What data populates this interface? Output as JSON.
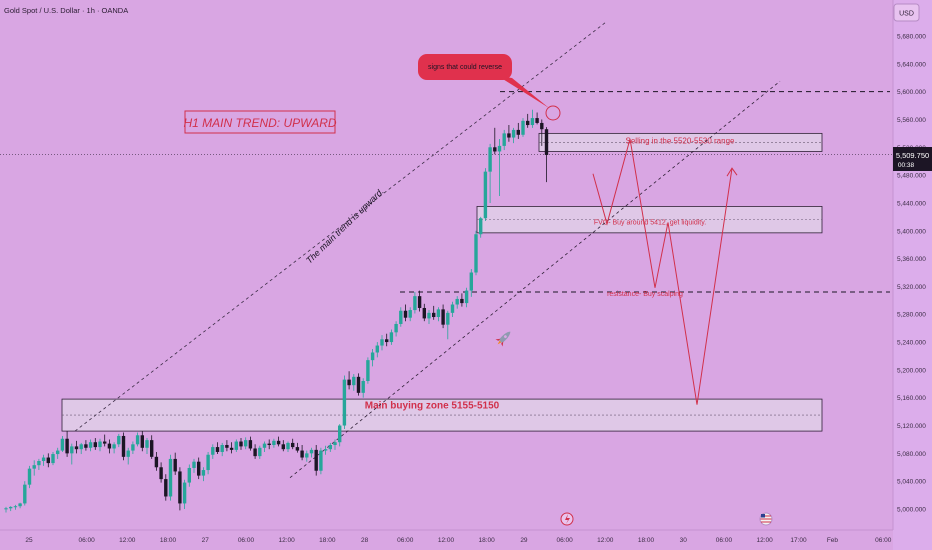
{
  "header": {
    "symbol_title": "Gold Spot / U.S. Dollar · 1h · OANDA",
    "currency": "USD"
  },
  "chart_data": {
    "type": "candlestick",
    "title": "Gold Spot / U.S. Dollar · 1h · OANDA",
    "ylim": [
      4985,
      5715
    ],
    "y_ticks": [
      5000,
      5040,
      5080,
      5120,
      5160,
      5200,
      5240,
      5280,
      5320,
      5360,
      5400,
      5440,
      5480,
      5520,
      5560,
      5600,
      5640,
      5680
    ],
    "y_tick_labels": [
      "5,000.000",
      "5,040.000",
      "5,080.000",
      "5,120.000",
      "5,160.000",
      "5,200.000",
      "5,240.000",
      "5,280.000",
      "5,320.000",
      "5,360.000",
      "5,400.000",
      "5,440.000",
      "5,480.000",
      "5,520.000",
      "5,560.000",
      "5,600.000",
      "5,640.000",
      "5,680.000"
    ],
    "x_ticks": [
      {
        "label": "25",
        "h": 0
      },
      {
        "label": "06:00",
        "h": 17
      },
      {
        "label": "12:00",
        "h": 29
      },
      {
        "label": "18:00",
        "h": 41
      },
      {
        "label": "27",
        "h": 52
      },
      {
        "label": "06:00",
        "h": 64
      },
      {
        "label": "12:00",
        "h": 76
      },
      {
        "label": "18:00",
        "h": 88
      },
      {
        "label": "28",
        "h": 99
      },
      {
        "label": "06:00",
        "h": 111
      },
      {
        "label": "12:00",
        "h": 123
      },
      {
        "label": "18:00",
        "h": 135
      },
      {
        "label": "29",
        "h": 146
      },
      {
        "label": "06:00",
        "h": 158
      },
      {
        "label": "12:00",
        "h": 170
      },
      {
        "label": "18:00",
        "h": 182
      },
      {
        "label": "30",
        "h": 193
      },
      {
        "label": "06:00",
        "h": 205
      },
      {
        "label": "12:00",
        "h": 217
      },
      {
        "label": "17:00",
        "h": 227
      },
      {
        "label": "Feb",
        "h": 237
      },
      {
        "label": "06:00",
        "h": 252
      }
    ],
    "candles": [
      [
        5000,
        5003,
        4995,
        5001
      ],
      [
        5001,
        5004,
        4997,
        5003
      ],
      [
        5003,
        5006,
        4999,
        5004
      ],
      [
        5004,
        5009,
        5001,
        5008
      ],
      [
        5008,
        5040,
        5005,
        5035
      ],
      [
        5035,
        5062,
        5030,
        5058
      ],
      [
        5058,
        5070,
        5048,
        5063
      ],
      [
        5063,
        5072,
        5056,
        5069
      ],
      [
        5069,
        5078,
        5062,
        5074
      ],
      [
        5074,
        5080,
        5060,
        5066
      ],
      [
        5066,
        5082,
        5063,
        5079
      ],
      [
        5079,
        5088,
        5072,
        5084
      ],
      [
        5084,
        5105,
        5082,
        5101
      ],
      [
        5101,
        5112,
        5075,
        5080
      ],
      [
        5080,
        5094,
        5064,
        5090
      ],
      [
        5090,
        5098,
        5080,
        5086
      ],
      [
        5086,
        5095,
        5079,
        5093
      ],
      [
        5093,
        5099,
        5084,
        5088
      ],
      [
        5088,
        5100,
        5083,
        5096
      ],
      [
        5096,
        5102,
        5085,
        5089
      ],
      [
        5089,
        5101,
        5083,
        5097
      ],
      [
        5097,
        5107,
        5090,
        5094
      ],
      [
        5094,
        5100,
        5080,
        5087
      ],
      [
        5087,
        5096,
        5080,
        5093
      ],
      [
        5093,
        5108,
        5089,
        5105
      ],
      [
        5105,
        5110,
        5070,
        5075
      ],
      [
        5075,
        5088,
        5064,
        5084
      ],
      [
        5084,
        5097,
        5079,
        5093
      ],
      [
        5093,
        5110,
        5090,
        5106
      ],
      [
        5106,
        5112,
        5083,
        5088
      ],
      [
        5088,
        5102,
        5079,
        5099
      ],
      [
        5099,
        5106,
        5072,
        5075
      ],
      [
        5075,
        5082,
        5055,
        5060
      ],
      [
        5060,
        5067,
        5038,
        5043
      ],
      [
        5043,
        5050,
        5012,
        5018
      ],
      [
        5018,
        5078,
        5012,
        5072
      ],
      [
        5072,
        5081,
        5049,
        5054
      ],
      [
        5054,
        5060,
        4998,
        5008
      ],
      [
        5008,
        5042,
        5000,
        5038
      ],
      [
        5038,
        5064,
        5032,
        5059
      ],
      [
        5059,
        5072,
        5052,
        5068
      ],
      [
        5068,
        5074,
        5043,
        5048
      ],
      [
        5048,
        5060,
        5040,
        5056
      ],
      [
        5056,
        5082,
        5050,
        5078
      ],
      [
        5078,
        5093,
        5072,
        5089
      ],
      [
        5089,
        5096,
        5079,
        5082
      ],
      [
        5082,
        5095,
        5076,
        5092
      ],
      [
        5092,
        5099,
        5083,
        5088
      ],
      [
        5088,
        5096,
        5080,
        5085
      ],
      [
        5085,
        5100,
        5082,
        5097
      ],
      [
        5097,
        5102,
        5085,
        5090
      ],
      [
        5090,
        5103,
        5086,
        5099
      ],
      [
        5099,
        5104,
        5084,
        5087
      ],
      [
        5087,
        5093,
        5072,
        5076
      ],
      [
        5076,
        5091,
        5072,
        5088
      ],
      [
        5088,
        5097,
        5082,
        5094
      ],
      [
        5094,
        5100,
        5086,
        5092
      ],
      [
        5092,
        5101,
        5088,
        5098
      ],
      [
        5098,
        5104,
        5090,
        5093
      ],
      [
        5093,
        5099,
        5083,
        5086
      ],
      [
        5086,
        5097,
        5082,
        5095
      ],
      [
        5095,
        5101,
        5086,
        5089
      ],
      [
        5089,
        5095,
        5081,
        5084
      ],
      [
        5084,
        5092,
        5070,
        5074
      ],
      [
        5074,
        5084,
        5068,
        5080
      ],
      [
        5080,
        5088,
        5074,
        5085
      ],
      [
        5085,
        5092,
        5048,
        5055
      ],
      [
        5055,
        5088,
        5050,
        5084
      ],
      [
        5084,
        5091,
        5078,
        5086
      ],
      [
        5086,
        5095,
        5082,
        5092
      ],
      [
        5092,
        5100,
        5085,
        5096
      ],
      [
        5096,
        5122,
        5090,
        5120
      ],
      [
        5120,
        5192,
        5115,
        5186
      ],
      [
        5186,
        5198,
        5172,
        5178
      ],
      [
        5178,
        5194,
        5170,
        5190
      ],
      [
        5190,
        5195,
        5163,
        5167
      ],
      [
        5167,
        5188,
        5160,
        5184
      ],
      [
        5184,
        5218,
        5180,
        5214
      ],
      [
        5214,
        5230,
        5205,
        5225
      ],
      [
        5225,
        5240,
        5218,
        5235
      ],
      [
        5235,
        5250,
        5228,
        5244
      ],
      [
        5244,
        5252,
        5234,
        5240
      ],
      [
        5240,
        5258,
        5236,
        5254
      ],
      [
        5254,
        5270,
        5248,
        5266
      ],
      [
        5266,
        5290,
        5262,
        5285
      ],
      [
        5285,
        5294,
        5270,
        5275
      ],
      [
        5275,
        5290,
        5270,
        5286
      ],
      [
        5286,
        5312,
        5281,
        5306
      ],
      [
        5306,
        5314,
        5284,
        5289
      ],
      [
        5289,
        5295,
        5270,
        5274
      ],
      [
        5274,
        5286,
        5266,
        5282
      ],
      [
        5282,
        5292,
        5272,
        5276
      ],
      [
        5276,
        5290,
        5270,
        5287
      ],
      [
        5287,
        5294,
        5260,
        5265
      ],
      [
        5265,
        5285,
        5244,
        5282
      ],
      [
        5282,
        5298,
        5276,
        5294
      ],
      [
        5294,
        5306,
        5288,
        5302
      ],
      [
        5302,
        5310,
        5291,
        5296
      ],
      [
        5296,
        5318,
        5290,
        5314
      ],
      [
        5314,
        5345,
        5305,
        5340
      ],
      [
        5340,
        5400,
        5336,
        5395
      ],
      [
        5395,
        5420,
        5390,
        5418
      ],
      [
        5418,
        5490,
        5414,
        5485
      ],
      [
        5485,
        5525,
        5440,
        5520
      ],
      [
        5520,
        5548,
        5510,
        5514
      ],
      [
        5514,
        5532,
        5450,
        5522
      ],
      [
        5522,
        5545,
        5516,
        5540
      ],
      [
        5540,
        5552,
        5528,
        5534
      ],
      [
        5534,
        5548,
        5526,
        5545
      ],
      [
        5545,
        5555,
        5532,
        5538
      ],
      [
        5538,
        5562,
        5535,
        5558
      ],
      [
        5558,
        5568,
        5548,
        5552
      ],
      [
        5552,
        5574,
        5548,
        5562
      ],
      [
        5562,
        5570,
        5553,
        5555
      ],
      [
        5555,
        5560,
        5522,
        5546
      ],
      [
        5546,
        5549,
        5470,
        5509
      ]
    ],
    "last_price": 5509.75,
    "last_price_label": "5,509.750",
    "countdown": "00:38",
    "horizontal_levels": [
      5600,
      5312
    ],
    "zones": [
      {
        "name": "sell-zone",
        "top": 5540,
        "bottom": 5514,
        "label": "Selling in the 5520-5530 range"
      },
      {
        "name": "fvg-zone",
        "top": 5435,
        "bottom": 5397,
        "label": "FVG- Buy around 5412, get liquidity."
      },
      {
        "name": "main-buying-zone",
        "top": 5158,
        "bottom": 5112,
        "label": "Main buying zone 5155-5150"
      }
    ],
    "resistance_label": "resistance- Buy scalping",
    "trend_label": "The main trend is upward.",
    "trend_title": "H1 MAIN TREND: UPWARD",
    "reversal_note": "signs that could reverse",
    "projection_path": [
      [
        5480,
        5482
      ],
      [
        5488,
        5410
      ],
      [
        5495,
        5532
      ],
      [
        5504,
        5318
      ],
      [
        5512,
        5412
      ],
      [
        5526,
        5150
      ],
      [
        5540,
        5490
      ]
    ]
  }
}
